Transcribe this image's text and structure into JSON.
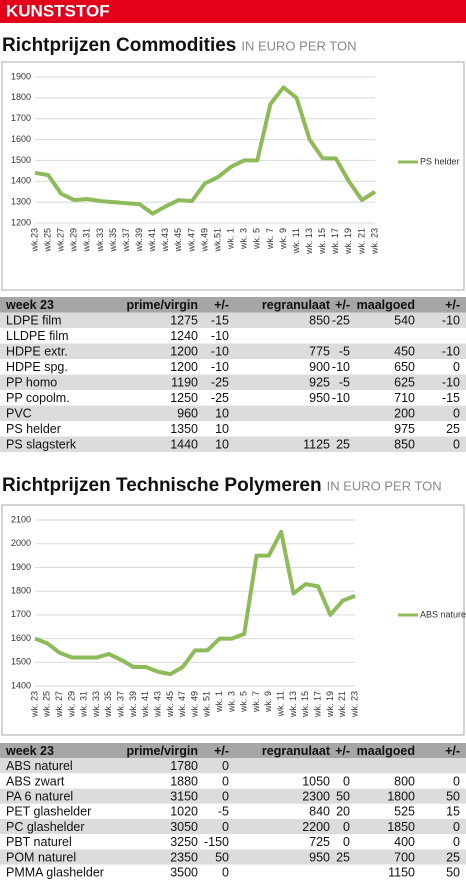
{
  "header": "KUNSTSTOF",
  "chart_data": [
    {
      "type": "line",
      "title": "Richtprijzen Commodities",
      "subtitle": "IN EURO PER TON",
      "categories": [
        "wk.23",
        "wk.25",
        "wk.27",
        "wk.29",
        "wk.31",
        "wk.33",
        "wk.35",
        "wk.37",
        "wk.39",
        "wk.41",
        "wk.43",
        "wk.45",
        "wk.47",
        "wk.49",
        "wk.51",
        "wk. 1",
        "wk. 3",
        "wk. 5",
        "wk. 7",
        "wk. 9",
        "wk. 11",
        "wk. 13",
        "wk. 15",
        "wk. 17",
        "wk. 19",
        "wk. 21",
        "wk. 23"
      ],
      "series": [
        {
          "name": "PS helder",
          "color": "#8dbb5a",
          "values": [
            1440,
            1430,
            1340,
            1310,
            1315,
            1305,
            1300,
            1295,
            1290,
            1245,
            1280,
            1310,
            1305,
            1390,
            1420,
            1470,
            1500,
            1500,
            1770,
            1850,
            1800,
            1600,
            1510,
            1510,
            1400,
            1310,
            1350
          ]
        }
      ],
      "ylim": [
        1200,
        1900
      ],
      "yticks": [
        1200,
        1300,
        1400,
        1500,
        1600,
        1700,
        1800,
        1900
      ],
      "grid": true,
      "legend": "right"
    },
    {
      "type": "line",
      "title": "Richtprijzen Technische Polymeren",
      "subtitle": "IN EURO PER TON",
      "categories": [
        "wk. 23",
        "wk. 25",
        "wk. 27",
        "wk. 29",
        "wk. 31",
        "wk. 33",
        "wk. 35",
        "wk. 37",
        "wk. 39",
        "wk. 41",
        "wk. 43",
        "wk. 45",
        "wk. 47",
        "wk. 49",
        "wk. 51",
        "wk. 1",
        "wk. 3",
        "wk. 5",
        "wk. 7",
        "wk. 9",
        "wk. 11",
        "wk. 13",
        "wk. 15",
        "wk. 17",
        "wk. 19",
        "wk. 21",
        "wk. 23"
      ],
      "series": [
        {
          "name": "ABS naturel",
          "color": "#8dbb5a",
          "values": [
            1600,
            1580,
            1540,
            1520,
            1520,
            1520,
            1535,
            1510,
            1480,
            1480,
            1460,
            1450,
            1480,
            1550,
            1550,
            1600,
            1600,
            1620,
            1950,
            1950,
            2050,
            1790,
            1830,
            1820,
            1700,
            1760,
            1780
          ]
        }
      ],
      "ylim": [
        1400,
        2100
      ],
      "yticks": [
        1400,
        1500,
        1600,
        1700,
        1800,
        1900,
        2000,
        2100
      ],
      "grid": true,
      "legend": "right"
    }
  ],
  "tables": [
    {
      "columns": [
        "week 23",
        "prime/virgin",
        "+/-",
        "regranulaat",
        "+/-",
        "maalgoed",
        "+/-"
      ],
      "rows": [
        [
          "LDPE film",
          1275,
          -15,
          850,
          -25,
          540,
          -10
        ],
        [
          "LLDPE film",
          1240,
          -10,
          null,
          null,
          null,
          null
        ],
        [
          "HDPE extr.",
          1200,
          -10,
          775,
          -5,
          450,
          -10
        ],
        [
          "HDPE spg.",
          1200,
          -10,
          900,
          -10,
          650,
          0
        ],
        [
          "PP homo",
          1190,
          -25,
          925,
          -5,
          625,
          -10
        ],
        [
          "PP copolm.",
          1250,
          -25,
          950,
          -10,
          710,
          -15
        ],
        [
          "PVC",
          960,
          10,
          null,
          null,
          200,
          0
        ],
        [
          "PS helder",
          1350,
          10,
          null,
          null,
          975,
          25
        ],
        [
          "PS slagsterk",
          1440,
          10,
          1125,
          25,
          850,
          0
        ]
      ]
    },
    {
      "columns": [
        "week 23",
        "prime/virgin",
        "+/-",
        "regranulaat",
        "+/-",
        "maalgoed",
        "+/-"
      ],
      "rows": [
        [
          "ABS naturel",
          1780,
          0,
          null,
          null,
          null,
          null
        ],
        [
          "ABS zwart",
          1880,
          0,
          1050,
          0,
          800,
          0
        ],
        [
          "PA 6 naturel",
          3150,
          0,
          2300,
          50,
          1800,
          50
        ],
        [
          "PET glashelder",
          1020,
          -5,
          840,
          20,
          525,
          15
        ],
        [
          "PC glashelder",
          3050,
          0,
          2200,
          0,
          1850,
          0
        ],
        [
          "PBT naturel",
          3250,
          -150,
          725,
          0,
          400,
          0
        ],
        [
          "POM naturel",
          2350,
          50,
          950,
          25,
          700,
          25
        ],
        [
          "PMMA glashelder",
          3500,
          0,
          null,
          null,
          1150,
          50
        ]
      ]
    }
  ]
}
